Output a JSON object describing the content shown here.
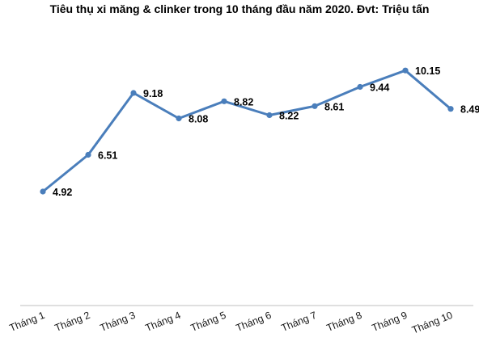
{
  "chart_data": {
    "type": "line",
    "title": "Tiêu thụ xi măng & clinker trong 10 tháng đầu năm 2020. Đvt: Triệu tấn",
    "categories": [
      "Tháng 1",
      "Tháng 2",
      "Tháng 3",
      "Tháng 4",
      "Tháng 5",
      "Tháng 6",
      "Tháng 7",
      "Tháng 8",
      "Tháng 9",
      "Tháng 10"
    ],
    "values": [
      4.92,
      6.51,
      9.18,
      8.08,
      8.82,
      8.22,
      8.61,
      9.44,
      10.15,
      8.49
    ],
    "data_labels": [
      "4.92",
      "6.51",
      "9.18",
      "8.08",
      "8.82",
      "8.22",
      "8.61",
      "9.44",
      "10.15",
      "8.49"
    ],
    "series_color": "#4a7ebb",
    "ylim": [
      0,
      11
    ],
    "grid": false,
    "legend": "none"
  }
}
